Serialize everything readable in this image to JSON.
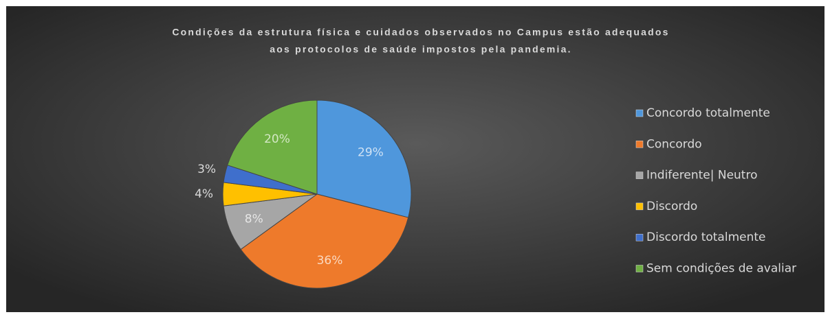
{
  "chart_data": {
    "type": "pie",
    "title": [
      "Condições da estrutura física e cuidados observados no Campus estão adequados",
      "aos protocolos de saúde impostos pela pandemia."
    ],
    "categories": [
      "Concordo totalmente",
      "Concordo",
      "Indiferente| Neutro",
      "Discordo",
      "Discordo totalmente",
      "Sem condições de avaliar"
    ],
    "values": [
      29,
      36,
      8,
      4,
      3,
      20
    ],
    "value_labels": [
      "29%",
      "36%",
      "8%",
      "4%",
      "3%",
      "20%"
    ],
    "colors": [
      "#4f97dc",
      "#ee7a2b",
      "#a6a6a6",
      "#ffc000",
      "#3f6fcc",
      "#6fb043"
    ],
    "legend": "right"
  }
}
